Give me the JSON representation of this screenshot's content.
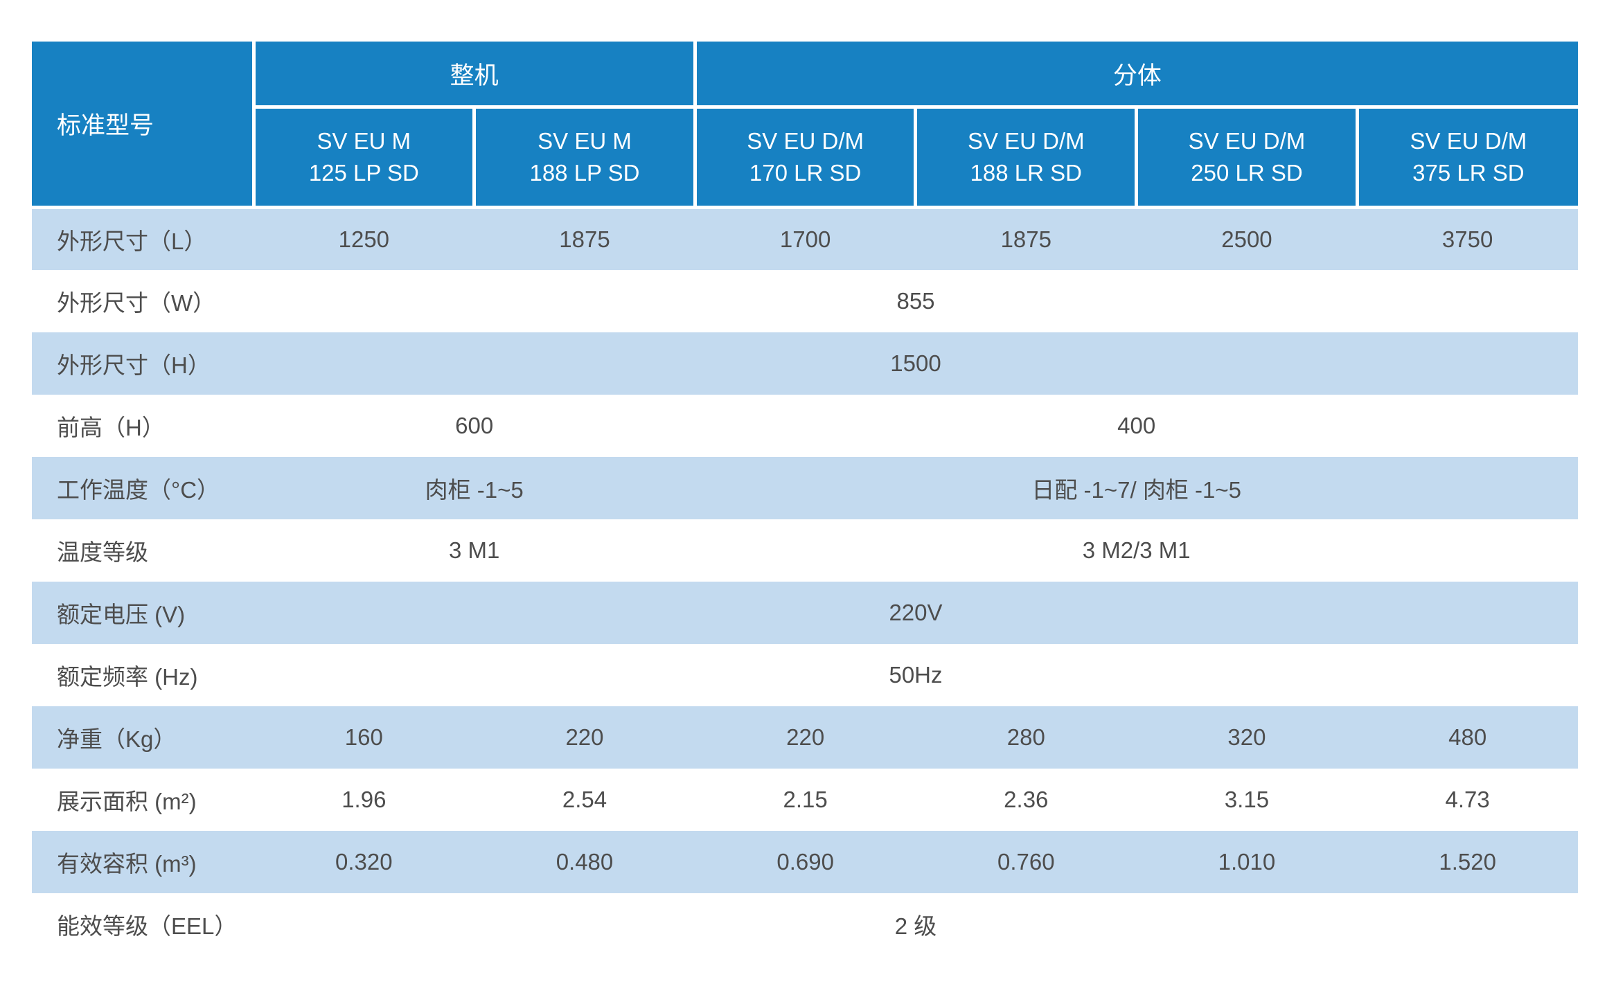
{
  "colors": {
    "header_background": "#1781c2",
    "header_text": "#ffffff",
    "row_alt_background": "#c3daef",
    "row_background": "#ffffff",
    "body_text": "#4d4d4d"
  },
  "chart_data": {
    "type": "table",
    "corner_label": "标准型号",
    "column_groups": [
      {
        "label": "整机",
        "span": 2
      },
      {
        "label": "分体",
        "span": 4
      }
    ],
    "columns": [
      "SV EU M\n125 LP SD",
      "SV EU M\n188 LP SD",
      "SV EU D/M\n170 LR SD",
      "SV EU D/M\n188 LR SD",
      "SV EU D/M\n250 LR SD",
      "SV EU D/M\n375 LR SD"
    ],
    "rows": [
      {
        "label": "外形尺寸（L）",
        "spans": [
          1,
          1,
          1,
          1,
          1,
          1
        ],
        "values": [
          "1250",
          "1875",
          "1700",
          "1875",
          "2500",
          "3750"
        ]
      },
      {
        "label": "外形尺寸（W）",
        "spans": [
          6
        ],
        "values": [
          "855"
        ]
      },
      {
        "label": "外形尺寸（H）",
        "spans": [
          6
        ],
        "values": [
          "1500"
        ]
      },
      {
        "label": "前高（H）",
        "spans": [
          2,
          4
        ],
        "values": [
          "600",
          "400"
        ]
      },
      {
        "label": "工作温度（°C）",
        "spans": [
          2,
          4
        ],
        "values": [
          "肉柜 -1~5",
          "日配 -1~7/ 肉柜 -1~5"
        ]
      },
      {
        "label": "温度等级",
        "spans": [
          2,
          4
        ],
        "values": [
          "3 M1",
          "3 M2/3 M1"
        ]
      },
      {
        "label": "额定电压 (V)",
        "spans": [
          6
        ],
        "values": [
          "220V"
        ]
      },
      {
        "label": "额定频率 (Hz)",
        "spans": [
          6
        ],
        "values": [
          "50Hz"
        ]
      },
      {
        "label": "净重（Kg）",
        "spans": [
          1,
          1,
          1,
          1,
          1,
          1
        ],
        "values": [
          "160",
          "220",
          "220",
          "280",
          "320",
          "480"
        ]
      },
      {
        "label": "展示面积 (m²)",
        "spans": [
          1,
          1,
          1,
          1,
          1,
          1
        ],
        "values": [
          "1.96",
          "2.54",
          "2.15",
          "2.36",
          "3.15",
          "4.73"
        ]
      },
      {
        "label": "有效容积 (m³)",
        "spans": [
          1,
          1,
          1,
          1,
          1,
          1
        ],
        "values": [
          "0.320",
          "0.480",
          "0.690",
          "0.760",
          "1.010",
          "1.520"
        ]
      },
      {
        "label": "能效等级（EEL）",
        "spans": [
          6
        ],
        "values": [
          "2 级"
        ]
      }
    ]
  }
}
